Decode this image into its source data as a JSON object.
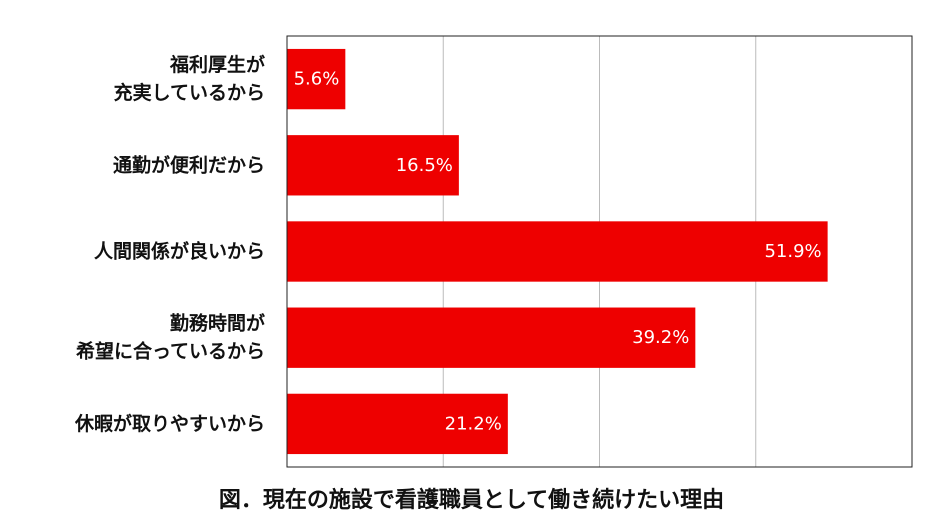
{
  "chart_data": {
    "type": "bar",
    "orientation": "horizontal",
    "caption": "図．現在の施設で看護職員として働き続けたい理由",
    "categories": [
      [
        "福利厚生が",
        "充実しているから"
      ],
      [
        "通勤が便利だから"
      ],
      [
        "人間関係が良いから"
      ],
      [
        "勤務時間が",
        "希望に合っているから"
      ],
      [
        "休暇が取りやすいから"
      ]
    ],
    "values": [
      5.6,
      16.5,
      51.9,
      39.2,
      21.2
    ],
    "value_labels": [
      "5.6%",
      "16.5%",
      "51.9%",
      "39.2%",
      "21.2%"
    ],
    "xlim": [
      0,
      60
    ],
    "grid": true,
    "legend": "none",
    "colors": {
      "bar": "#ee0000",
      "grid": "#bbbbbb",
      "frame": "#222222",
      "value_text": "#ffffff"
    }
  }
}
